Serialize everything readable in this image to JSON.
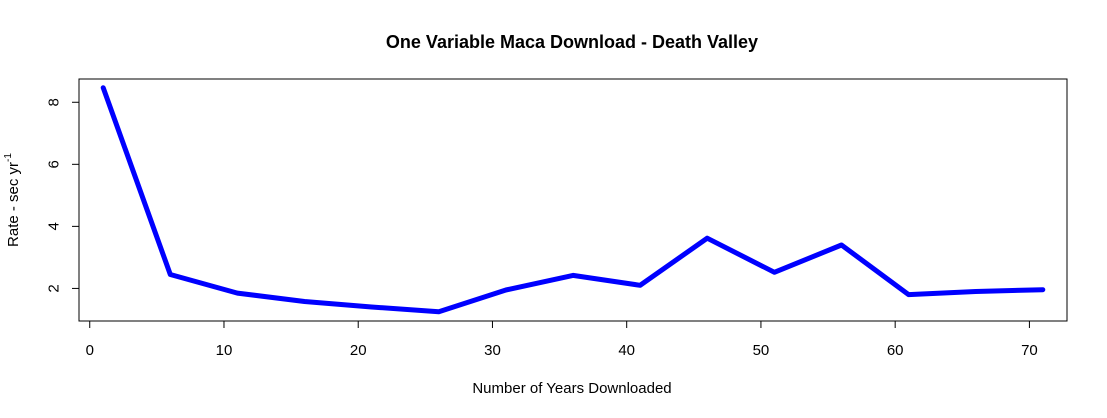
{
  "chart_data": {
    "type": "line",
    "title": "One Variable Maca Download - Death Valley",
    "xlabel": "Number of Years Downloaded",
    "ylabel": "Rate - sec yr",
    "ylabel_superscript": "-1",
    "xlim": [
      -0.8,
      72.8
    ],
    "ylim": [
      0.95,
      8.75
    ],
    "xticks": [
      0,
      10,
      20,
      30,
      40,
      50,
      60,
      70
    ],
    "yticks": [
      2,
      4,
      6,
      8
    ],
    "grid": false,
    "legend": "none",
    "series": [
      {
        "color": "#0000ff",
        "x": [
          1,
          6,
          11,
          16,
          21,
          26,
          31,
          36,
          41,
          46,
          51,
          56,
          61,
          66,
          71
        ],
        "y": [
          8.47,
          2.45,
          1.85,
          1.58,
          1.4,
          1.25,
          1.95,
          2.42,
          2.1,
          3.62,
          2.52,
          3.4,
          1.8,
          1.9,
          1.96
        ]
      }
    ]
  }
}
